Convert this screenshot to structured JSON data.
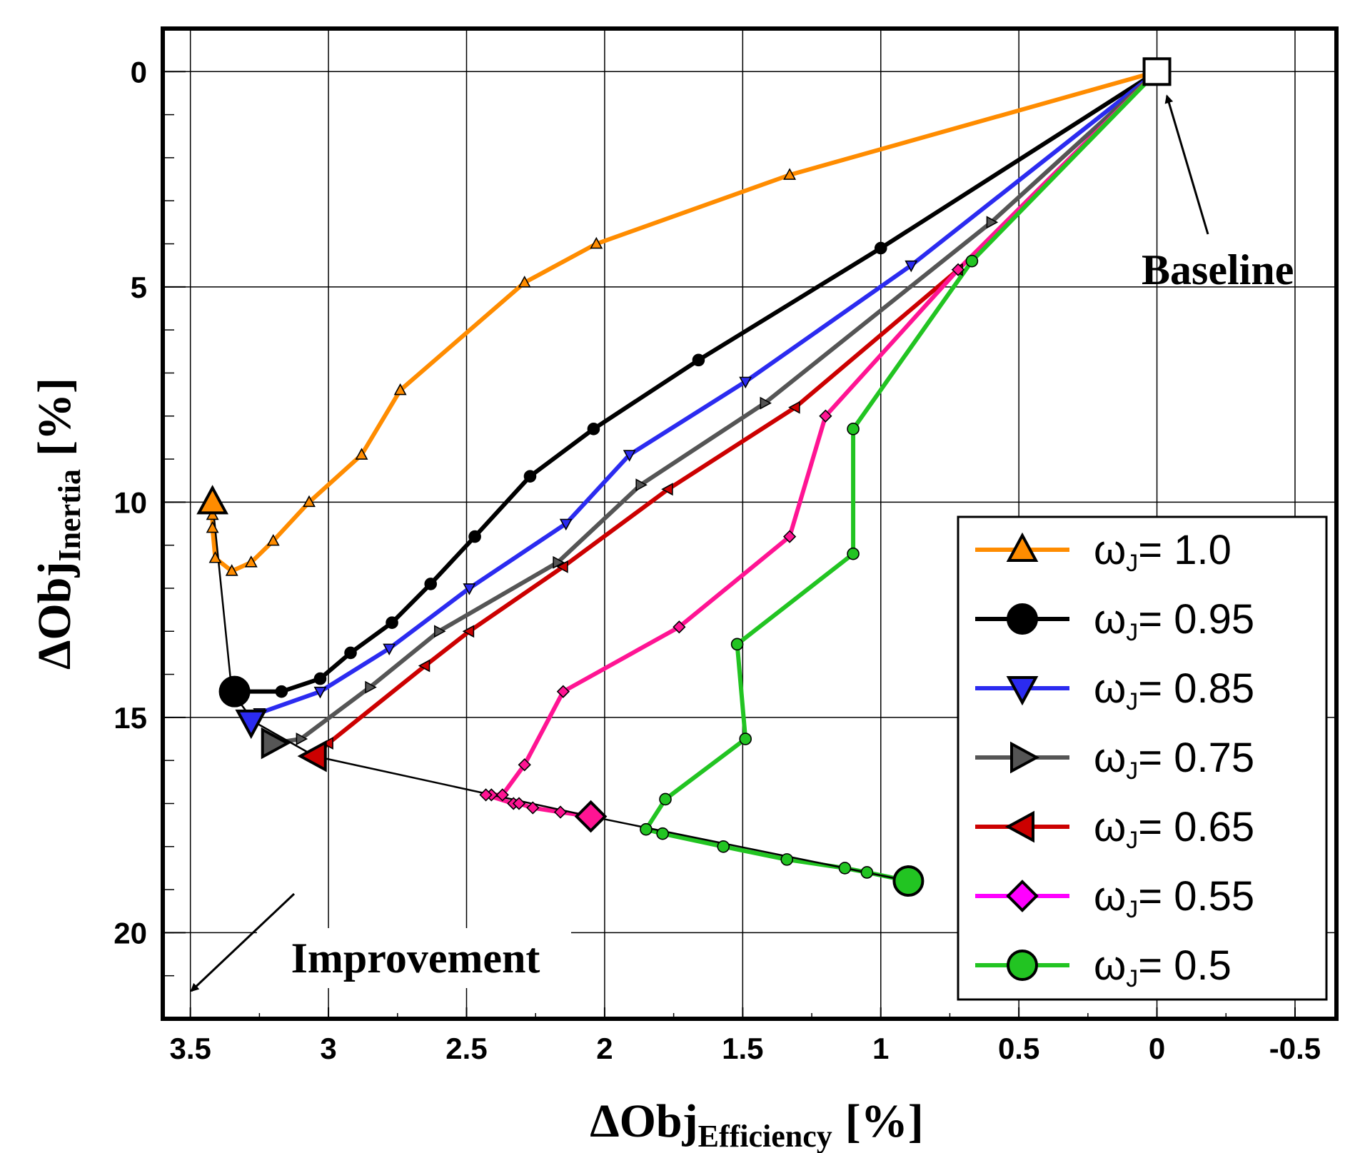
{
  "chart_data": {
    "type": "line",
    "title": "",
    "xlabel": {
      "main": "ΔObj",
      "sub": "Efficiency",
      "unit": "[%]"
    },
    "ylabel": {
      "main": "ΔObj",
      "sub": "Inertia",
      "unit": "[%]"
    },
    "xlim": [
      3.6,
      -0.65
    ],
    "ylim": [
      -1.0,
      22.0
    ],
    "x_reversed": true,
    "y_reversed": true,
    "grid": true,
    "xticks": [
      3.5,
      3,
      2.5,
      2,
      1.5,
      1,
      0.5,
      0,
      -0.5
    ],
    "xtick_labels": [
      "3.5",
      "3",
      "2.5",
      "2",
      "1.5",
      "1",
      "0.5",
      "0",
      "-0.5"
    ],
    "yticks": [
      0,
      5,
      10,
      15,
      20
    ],
    "ytick_labels": [
      "0",
      "5",
      "10",
      "15",
      "20"
    ],
    "legend_position": "bottom-right",
    "baseline": {
      "x": 0.0,
      "y": 0.0,
      "label": "Baseline"
    },
    "annotations": [
      {
        "text": "Baseline",
        "arrow_to": [
          0.0,
          0.0
        ]
      },
      {
        "text": "Improvement",
        "arrow_direction": "down-left"
      }
    ],
    "pareto_front": {
      "x": [
        3.42,
        3.35,
        3.27,
        3.05,
        2.05,
        0.9
      ],
      "y": [
        10.0,
        14.4,
        15.1,
        15.9,
        17.3,
        18.8
      ]
    },
    "series": [
      {
        "name": "ωJ = 1.0",
        "color": "#ff8c00",
        "marker": "triangle-up",
        "x": [
          0,
          1.33,
          2.03,
          2.29,
          2.74,
          2.88,
          3.07,
          3.2,
          3.28,
          3.35,
          3.41,
          3.42,
          3.42,
          3.42
        ],
        "y": [
          0,
          2.4,
          4.0,
          4.9,
          7.4,
          8.9,
          10.0,
          10.9,
          11.4,
          11.6,
          11.3,
          10.6,
          10.3,
          10.0
        ]
      },
      {
        "name": "ωJ = 0.95",
        "color": "#000000",
        "marker": "circle",
        "x": [
          0,
          1.0,
          1.66,
          2.04,
          2.27,
          2.47,
          2.63,
          2.77,
          2.92,
          3.03,
          3.17,
          3.34
        ],
        "y": [
          0,
          4.1,
          6.7,
          8.3,
          9.4,
          10.8,
          11.9,
          12.8,
          13.5,
          14.1,
          14.4,
          14.4
        ]
      },
      {
        "name": "ωJ = 0.85",
        "color": "#2b2bf0",
        "marker": "triangle-down",
        "x": [
          0,
          0.89,
          1.49,
          1.91,
          2.14,
          2.49,
          2.78,
          3.03,
          3.25,
          3.28
        ],
        "y": [
          0,
          4.5,
          7.2,
          8.9,
          10.5,
          12.0,
          13.4,
          14.4,
          14.9,
          15.1
        ]
      },
      {
        "name": "ωJ = 0.75",
        "color": "#555555",
        "marker": "triangle-right",
        "x": [
          0,
          0.6,
          1.42,
          1.87,
          2.17,
          2.6,
          2.85,
          3.1,
          3.2
        ],
        "y": [
          0,
          3.5,
          7.7,
          9.6,
          11.4,
          13.0,
          14.3,
          15.5,
          15.6
        ]
      },
      {
        "name": "ωJ = 0.65",
        "color": "#cc0000",
        "marker": "triangle-left",
        "x": [
          0,
          0.72,
          1.31,
          1.77,
          2.15,
          2.49,
          2.65,
          3.0,
          3.05
        ],
        "y": [
          0,
          4.6,
          7.8,
          9.7,
          11.5,
          13.0,
          13.8,
          15.6,
          15.9
        ]
      },
      {
        "name": "ωJ = 0.55",
        "color": "#ff1493",
        "marker": "diamond",
        "x": [
          0,
          0.72,
          1.2,
          1.33,
          1.73,
          2.15,
          2.29,
          2.37,
          2.41,
          2.43,
          2.33,
          2.31,
          2.26,
          2.16,
          2.05
        ],
        "y": [
          0,
          4.6,
          8.0,
          10.8,
          12.9,
          14.4,
          16.1,
          16.8,
          16.8,
          16.8,
          17.0,
          17.0,
          17.1,
          17.2,
          17.3
        ],
        "legend_color": "#ff00ff"
      },
      {
        "name": "ωJ = 0.5",
        "color": "#22c422",
        "marker": "circle",
        "x": [
          0,
          0.67,
          1.1,
          1.1,
          1.52,
          1.49,
          1.78,
          1.85,
          1.79,
          1.57,
          1.34,
          1.13,
          1.05,
          0.9
        ],
        "y": [
          0,
          4.4,
          8.3,
          11.2,
          13.3,
          15.5,
          16.9,
          17.6,
          17.7,
          18.0,
          18.3,
          18.5,
          18.6,
          18.8
        ]
      }
    ]
  }
}
